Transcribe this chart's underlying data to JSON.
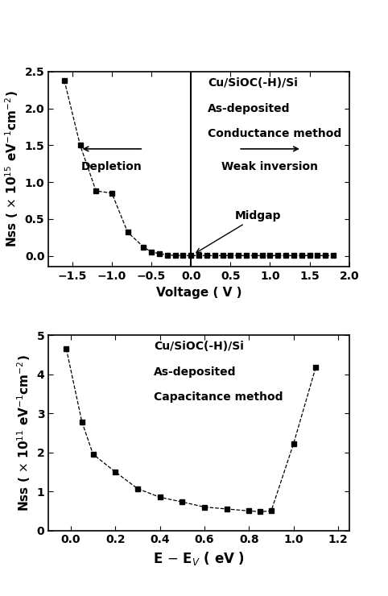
{
  "plot1": {
    "x": [
      -1.6,
      -1.4,
      -1.2,
      -1.0,
      -0.8,
      -0.6,
      -0.5,
      -0.4,
      -0.3,
      -0.2,
      -0.1,
      0.0,
      0.1,
      0.2,
      0.3,
      0.4,
      0.5,
      0.6,
      0.7,
      0.8,
      0.9,
      1.0,
      1.1,
      1.2,
      1.3,
      1.4,
      1.5,
      1.6,
      1.7,
      1.8
    ],
    "y": [
      2.38,
      1.5,
      0.88,
      0.85,
      0.32,
      0.12,
      0.05,
      0.03,
      0.01,
      0.005,
      0.003,
      0.002,
      0.002,
      0.002,
      0.002,
      0.002,
      0.002,
      0.002,
      0.002,
      0.002,
      0.002,
      0.002,
      0.002,
      0.002,
      0.002,
      0.002,
      0.002,
      0.002,
      0.002,
      0.002
    ],
    "xlabel": "Voltage ( V )",
    "xlim": [
      -1.8,
      2.0
    ],
    "ylim": [
      -0.15,
      2.5
    ],
    "xticks": [
      -1.5,
      -1.0,
      -0.5,
      0.0,
      0.5,
      1.0,
      1.5,
      2.0
    ],
    "yticks": [
      0.0,
      0.5,
      1.0,
      1.5,
      2.0,
      2.5
    ],
    "vline_x": 0.0,
    "ann1": "Cu/SiOC(-H)/Si",
    "ann2": "As-deposited",
    "ann3": "Conductance method",
    "depletion_label": "Depletion",
    "weak_inv_label": "Weak inversion",
    "midgap_label": "Midgap"
  },
  "plot2": {
    "x": [
      -0.02,
      0.05,
      0.1,
      0.2,
      0.3,
      0.4,
      0.5,
      0.6,
      0.7,
      0.8,
      0.85,
      0.9,
      1.0,
      1.1
    ],
    "y": [
      4.65,
      2.78,
      1.95,
      1.5,
      1.07,
      0.85,
      0.73,
      0.6,
      0.55,
      0.5,
      0.48,
      0.5,
      2.22,
      4.18
    ],
    "xlim": [
      -0.1,
      1.25
    ],
    "ylim": [
      0,
      5
    ],
    "xticks": [
      0.0,
      0.2,
      0.4,
      0.6,
      0.8,
      1.0,
      1.2
    ],
    "yticks": [
      0,
      1,
      2,
      3,
      4,
      5
    ],
    "ann1": "Cu/SiOC(-H)/Si",
    "ann2": "As-deposited",
    "ann3": "Capacitance method"
  },
  "marker": "s",
  "markersize": 5,
  "linewidth": 0.9,
  "color": "#000000",
  "background": "#ffffff",
  "fontsize_axis_label": 11,
  "fontsize_tick": 10,
  "fontsize_annot": 10
}
